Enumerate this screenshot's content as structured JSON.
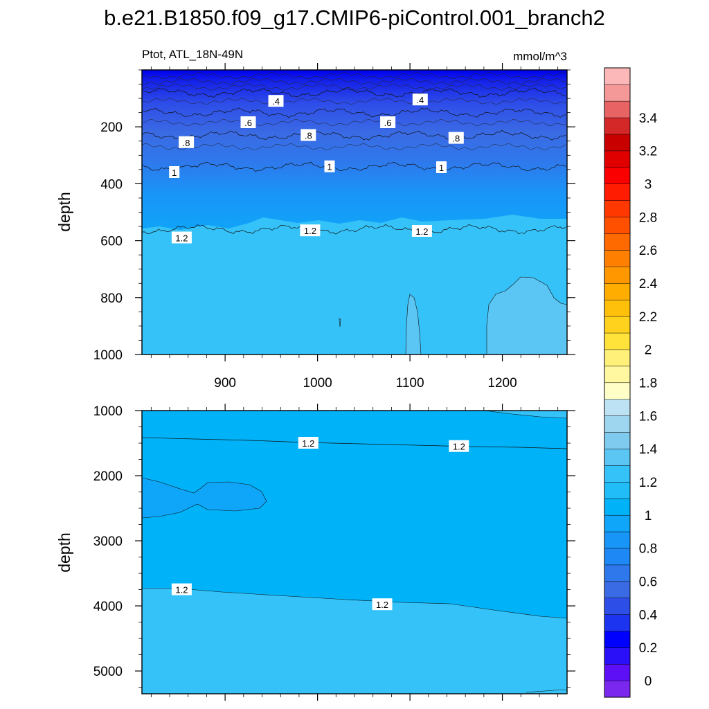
{
  "chart_data": {
    "type": "heatmap",
    "title": "b.e21.B1850.f09_g17.CMIP6-piControl.001_branch2",
    "left_subtitle": "Ptot, ATL_18N-49N",
    "right_subtitle": "mmol/m^3",
    "x_ticks": [
      900,
      1000,
      1100,
      1200
    ],
    "x_tick_labels": [
      "900",
      "1000",
      "1100",
      "1200"
    ],
    "xlim": [
      810,
      1270
    ],
    "panels": [
      {
        "name": "upper",
        "ylabel": "depth",
        "ylim": [
          1000,
          0
        ],
        "y_ticks": [
          200,
          400,
          600,
          800,
          1000
        ],
        "y_tick_labels": [
          "200",
          "400",
          "600",
          "800",
          "1000"
        ],
        "contours": [
          {
            "level": 0.4,
            "depth": 80
          },
          {
            "level": 0.6,
            "depth": 150
          },
          {
            "level": 0.8,
            "depth": 230
          },
          {
            "level": 1.0,
            "depth": 340
          },
          {
            "level": 1.2,
            "depth": 560
          }
        ],
        "contour_labels": [
          {
            "text": ".4",
            "x": 955,
            "depth": 110
          },
          {
            "text": ".4",
            "x": 1111,
            "depth": 105
          },
          {
            "text": ".6",
            "x": 925,
            "depth": 185
          },
          {
            "text": ".6",
            "x": 1076,
            "depth": 185
          },
          {
            "text": ".8",
            "x": 858,
            "depth": 255
          },
          {
            "text": ".8",
            "x": 990,
            "depth": 230
          },
          {
            "text": ".8",
            "x": 1150,
            "depth": 240
          },
          {
            "text": "1",
            "x": 845,
            "depth": 360
          },
          {
            "text": "1",
            "x": 1013,
            "depth": 340
          },
          {
            "text": "1",
            "x": 1134,
            "depth": 343
          },
          {
            "text": "1.2",
            "x": 853,
            "depth": 590
          },
          {
            "text": "1.2",
            "x": 992,
            "depth": 565
          },
          {
            "text": "1.2",
            "x": 1113,
            "depth": 567
          }
        ]
      },
      {
        "name": "lower",
        "ylabel": "depth",
        "ylim": [
          5350,
          1000
        ],
        "y_ticks": [
          1000,
          2000,
          3000,
          4000,
          5000
        ],
        "y_tick_labels": [
          "1000",
          "2000",
          "3000",
          "4000",
          "5000"
        ],
        "contour_labels": [
          {
            "text": "1.2",
            "x": 990,
            "depth": 1500
          },
          {
            "text": "1.2",
            "x": 1153,
            "depth": 1550
          },
          {
            "text": "1.2",
            "x": 853,
            "depth": 3750
          },
          {
            "text": "1.2",
            "x": 1070,
            "depth": 3980
          }
        ]
      }
    ],
    "colorbar": {
      "levels": [
        -0.2,
        0,
        0.1,
        0.2,
        0.3,
        0.4,
        0.5,
        0.6,
        0.7,
        0.8,
        0.9,
        1.0,
        1.1,
        1.2,
        1.3,
        1.4,
        1.5,
        1.6,
        1.7,
        1.8,
        1.9,
        2.0,
        2.1,
        2.2,
        2.3,
        2.4,
        2.5,
        2.6,
        2.7,
        2.8,
        2.9,
        3.0,
        3.1,
        3.2,
        3.3,
        3.4,
        3.5,
        3.6
      ],
      "labels": [
        "0",
        "0.2",
        "0.4",
        "0.6",
        "0.8",
        "1",
        "1.2",
        "1.4",
        "1.6",
        "1.8",
        "2",
        "2.2",
        "2.4",
        "2.6",
        "2.8",
        "3",
        "3.2",
        "3.4"
      ],
      "colors": [
        "#7a28ee",
        "#5d10f5",
        "#2a10f8",
        "#0000ff",
        "#1c33f0",
        "#2e4ee8",
        "#3a6ae4",
        "#2f78ec",
        "#1e88f5",
        "#1896f8",
        "#0fa5f8",
        "#00b2f8",
        "#20bdf8",
        "#35c2f8",
        "#5bc5f3",
        "#7fcbef",
        "#9fd6ef",
        "#bde2f4",
        "#fffec6",
        "#fff8a0",
        "#fff07a",
        "#ffe33a",
        "#ffd21e",
        "#ffc00c",
        "#ffae00",
        "#ff9800",
        "#ff8000",
        "#ff6a00",
        "#ff5000",
        "#ff3800",
        "#ff1c00",
        "#fa0000",
        "#e00000",
        "#c80000",
        "#d42828",
        "#e86464",
        "#f49898",
        "#fcb8b8"
      ]
    }
  }
}
